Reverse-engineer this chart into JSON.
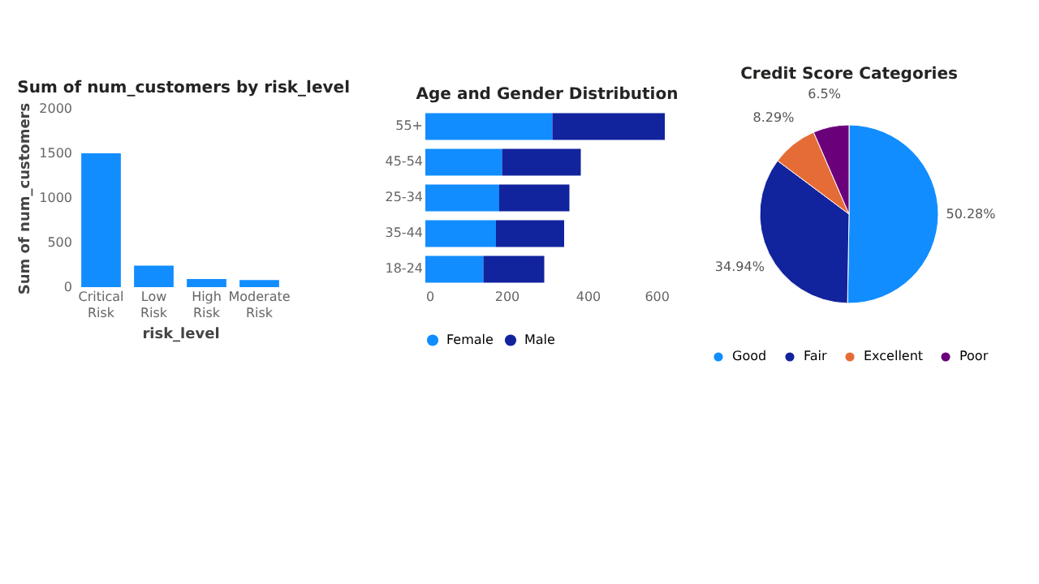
{
  "chart_data": [
    {
      "type": "bar",
      "title": "Sum of num_customers by risk_level",
      "xlabel": "risk_level",
      "ylabel": "Sum of num_customers",
      "categories": [
        "Critical Risk",
        "Low Risk",
        "High Risk",
        "Moderate Risk"
      ],
      "values": [
        1500,
        240,
        90,
        80
      ],
      "color": "#118dff",
      "ylim": [
        0,
        2000
      ],
      "yticks": [
        0,
        500,
        1000,
        1500,
        2000
      ],
      "grid": false
    },
    {
      "type": "bar",
      "title": "Age and Gender Distribution",
      "orientation": "horizontal",
      "stacked": true,
      "categories": [
        "55+",
        "45-54",
        "25-34",
        "35-44",
        "18-24"
      ],
      "series": [
        {
          "name": "Female",
          "color": "#118dff",
          "values": [
            313,
            189,
            182,
            174,
            143
          ]
        },
        {
          "name": "Male",
          "color": "#12239e",
          "values": [
            277,
            194,
            173,
            168,
            150
          ]
        }
      ],
      "xlim": [
        0,
        600
      ],
      "xticks": [
        0,
        200,
        400,
        600
      ],
      "grid": false,
      "legend": "bottom"
    },
    {
      "type": "pie",
      "title": "Credit Score Categories",
      "categories": [
        "Good",
        "Fair",
        "Excellent",
        "Poor"
      ],
      "values": [
        50.28,
        34.94,
        8.29,
        6.5
      ],
      "colors": [
        "#118dff",
        "#12239e",
        "#e66c37",
        "#6b007b"
      ],
      "value_labels": [
        "50.28%",
        "34.94%",
        "8.29%",
        "6.5%"
      ],
      "legend": "bottom"
    }
  ]
}
